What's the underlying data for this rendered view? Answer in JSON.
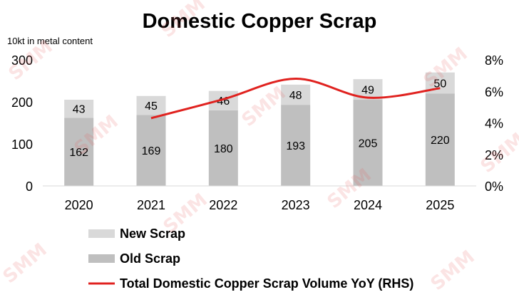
{
  "chart_data": {
    "type": "bar",
    "stacked": true,
    "title": "Domestic Copper Scrap",
    "ylabel": "10kt in metal content",
    "categories": [
      "2020",
      "2021",
      "2022",
      "2023",
      "2024",
      "2025"
    ],
    "ylim": [
      0,
      300
    ],
    "yticks": [
      "0",
      "100",
      "200",
      "300"
    ],
    "y2lim": [
      0,
      8
    ],
    "y2ticks": [
      "0%",
      "2%",
      "4%",
      "6%",
      "8%"
    ],
    "series": [
      {
        "name": "Old Scrap",
        "color": "#bfbfbf",
        "values": [
          162,
          169,
          180,
          193,
          205,
          220
        ]
      },
      {
        "name": "New Scrap",
        "color": "#d9d9d9",
        "values": [
          43,
          45,
          46,
          48,
          49,
          50
        ]
      }
    ],
    "line": {
      "name": "Total Domestic Copper Scrap Volume YoY (RHS)",
      "color": "#e0221f",
      "axis": "right",
      "x": [
        "2021",
        "2022",
        "2023",
        "2024",
        "2025"
      ],
      "values": [
        4.3,
        5.5,
        6.8,
        5.6,
        6.2
      ]
    },
    "legend": [
      {
        "label": "New Scrap",
        "color": "#d9d9d9",
        "kind": "box"
      },
      {
        "label": "Old Scrap",
        "color": "#bfbfbf",
        "kind": "box"
      },
      {
        "label": "Total Domestic Copper Scrap Volume YoY (RHS)",
        "color": "#e0221f",
        "kind": "line"
      }
    ],
    "legend_position": "bottom",
    "grid": false
  },
  "watermark": "SMM"
}
